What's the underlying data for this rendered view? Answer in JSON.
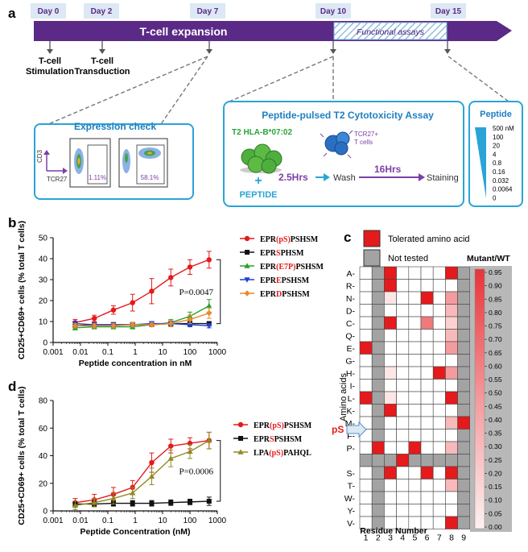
{
  "panel_a": {
    "label": "a",
    "days": [
      "Day 0",
      "Day 2",
      "Day 7",
      "Day 10",
      "Day 15"
    ],
    "bar_title": "T-cell expansion",
    "functional_assays": "Functional assays",
    "steps": [
      "T-cell\nStimulation",
      "T-cell\nTransduction"
    ],
    "expression_check": {
      "title": "Expression check",
      "y_axis": "CD3",
      "x_axis": "TCR27",
      "plot1_pct": "1.11%",
      "plot2_pct": "58.1%"
    },
    "cytotox": {
      "title": "Peptide-pulsed T2 Cytotoxicity Assay",
      "t2_label": "T2 HLA-B*07:02",
      "plus": "+",
      "peptide": "PEPTIDE",
      "tcr_label": "TCR27+\nT cells",
      "time1": "2.5Hrs",
      "wash": "Wash",
      "time2": "16Hrs",
      "staining": "Staining"
    },
    "peptide_box": {
      "title": "Peptide",
      "concs": [
        "500 nM",
        "100",
        "20",
        "4",
        "0.8",
        "0.16",
        "0.032",
        "0.0064",
        "0"
      ]
    }
  },
  "panel_b": {
    "label": "b",
    "chart_data": {
      "type": "line",
      "xlabel": "Peptide concentration in nM",
      "ylabel": "CD25+CD69+ cells (% total T cells)",
      "x": [
        0.0064,
        0.032,
        0.16,
        0.8,
        4,
        20,
        100,
        500
      ],
      "xticks": [
        "0.001",
        "0.01",
        "0.1",
        "1",
        "10",
        "100",
        "1000"
      ],
      "yticks": [
        "0",
        "10",
        "20",
        "30",
        "40",
        "50"
      ],
      "ylim": [
        0,
        50
      ],
      "xlim": [
        0.001,
        1000
      ],
      "series": [
        {
          "name": "EPR(pS)PSHSM",
          "pre": "EPR",
          "mid": "(pS)",
          "post": "PSHSM",
          "color": "#e41a1c",
          "marker": "circle",
          "values": [
            9.5,
            11.5,
            15.5,
            19,
            24.5,
            31,
            36,
            39.5
          ],
          "err": [
            1.5,
            1.5,
            2,
            4,
            6,
            4,
            3.5,
            4
          ]
        },
        {
          "name": "EPRSPHSM",
          "pre": "EPR",
          "mid": "S",
          "post": "PHSM",
          "color": "#111111",
          "marker": "square",
          "values": [
            8,
            8.5,
            8.5,
            8.5,
            8.5,
            9,
            9,
            9
          ],
          "err": [
            1,
            1,
            1,
            1,
            1,
            1,
            1,
            1
          ]
        },
        {
          "name": "EPR(E7P)PSHSM",
          "pre": "EPR",
          "mid": "(E7P)",
          "post": "PSHSM",
          "color": "#2ca02c",
          "marker": "triangle",
          "values": [
            7,
            7.5,
            7.5,
            7.5,
            8.5,
            9.5,
            12.5,
            17.5
          ],
          "err": [
            1,
            1,
            1,
            1,
            1,
            1.5,
            2,
            3
          ]
        },
        {
          "name": "EPREPSHSM",
          "pre": "EPR",
          "mid": "E",
          "post": "PSHSM",
          "color": "#1f3fd6",
          "marker": "tri-down",
          "values": [
            9,
            8.5,
            8.5,
            8.5,
            9,
            9,
            8.5,
            8
          ],
          "err": [
            1,
            1,
            1,
            1,
            1,
            1,
            1,
            1
          ]
        },
        {
          "name": "EPRDPSHSM",
          "pre": "EPR",
          "mid": "D",
          "post": "PSHSM",
          "color": "#e8892c",
          "marker": "diamond",
          "values": [
            8,
            8,
            8,
            8.5,
            8.5,
            9,
            11,
            14
          ],
          "err": [
            1,
            1,
            1,
            1,
            1,
            1.5,
            2,
            2.5
          ]
        }
      ],
      "annotation": "P=0.0047"
    }
  },
  "panel_c": {
    "label": "c",
    "legend_tolerated": "Tolerated amino acid",
    "legend_not_tested": "Not tested",
    "colorbar_title": "Mutant/WT",
    "colorbar_ticks": [
      "0.95",
      "0.90",
      "0.85",
      "0.80",
      "0.75",
      "0.70",
      "0.65",
      "0.60",
      "0.55",
      "0.50",
      "0.45",
      "0.40",
      "0.35",
      "0.30",
      "0.25",
      "0.20",
      "0.15",
      "0.10",
      "0.05",
      "0.00"
    ],
    "ylabel": "Amino acids",
    "xlabel": "Residue Number",
    "ps_label": "pS",
    "chart_data": {
      "type": "heatmap",
      "rows": [
        "A",
        "R",
        "N",
        "D",
        "C",
        "Q",
        "E",
        "G",
        "H",
        "I",
        "L",
        "K",
        "M",
        "F",
        "P",
        "pS",
        "S",
        "T",
        "W",
        "Y",
        "V"
      ],
      "cols": [
        "1",
        "2",
        "3",
        "4",
        "5",
        "6",
        "7",
        "8",
        "9"
      ],
      "values": [
        [
          "w",
          "g",
          "r",
          "w",
          "w",
          "w",
          "w",
          "r",
          "g"
        ],
        [
          "w",
          "g",
          "r",
          "w",
          "w",
          "w",
          "w",
          "w",
          "g"
        ],
        [
          "w",
          "g",
          "p1",
          "w",
          "w",
          "r",
          "w",
          "p4",
          "g"
        ],
        [
          "w",
          "g",
          "w",
          "w",
          "w",
          "w",
          "w",
          "p3",
          "g"
        ],
        [
          "w",
          "g",
          "r",
          "w",
          "w",
          "p5",
          "w",
          "p2",
          "g"
        ],
        [
          "w",
          "g",
          "w",
          "w",
          "w",
          "w",
          "w",
          "p3",
          "g"
        ],
        [
          "r",
          "g",
          "w",
          "w",
          "w",
          "w",
          "w",
          "p4",
          "g"
        ],
        [
          "w",
          "g",
          "w",
          "w",
          "w",
          "w",
          "w",
          "w",
          "g"
        ],
        [
          "w",
          "g",
          "p1",
          "w",
          "w",
          "w",
          "r",
          "p4",
          "g"
        ],
        [
          "w",
          "g",
          "w",
          "w",
          "w",
          "w",
          "w",
          "w",
          "g"
        ],
        [
          "r",
          "g",
          "p1",
          "w",
          "w",
          "w",
          "w",
          "r",
          "g"
        ],
        [
          "w",
          "g",
          "r",
          "w",
          "w",
          "w",
          "w",
          "w",
          "g"
        ],
        [
          "w",
          "g",
          "w",
          "w",
          "w",
          "w",
          "w",
          "p3",
          "r"
        ],
        [
          "w",
          "g",
          "w",
          "w",
          "w",
          "w",
          "w",
          "w",
          "g"
        ],
        [
          "w",
          "r",
          "w",
          "w",
          "r",
          "w",
          "w",
          "p3",
          "g"
        ],
        [
          "g",
          "g",
          "g",
          "r",
          "g",
          "g",
          "g",
          "g",
          "g"
        ],
        [
          "w",
          "g",
          "r",
          "w",
          "w",
          "r",
          "w",
          "r",
          "g"
        ],
        [
          "w",
          "g",
          "w",
          "w",
          "w",
          "w",
          "w",
          "p3",
          "g"
        ],
        [
          "w",
          "g",
          "w",
          "w",
          "w",
          "w",
          "w",
          "w",
          "g"
        ],
        [
          "w",
          "g",
          "w",
          "w",
          "w",
          "w",
          "w",
          "w",
          "g"
        ],
        [
          "w",
          "g",
          "w",
          "w",
          "w",
          "w",
          "w",
          "r",
          "g"
        ]
      ]
    }
  },
  "panel_d": {
    "label": "d",
    "chart_data": {
      "type": "line",
      "xlabel": "Peptide Concentration (nM)",
      "ylabel": "CD25+CD69+ cells (% total T cells)",
      "x": [
        0.0064,
        0.032,
        0.16,
        0.8,
        4,
        20,
        100,
        500
      ],
      "xticks": [
        "0.001",
        "0.01",
        "0.1",
        "1",
        "10",
        "100",
        "1000"
      ],
      "yticks": [
        "0",
        "20",
        "40",
        "60",
        "80"
      ],
      "ylim": [
        0,
        80
      ],
      "xlim": [
        0.001,
        1000
      ],
      "series": [
        {
          "name": "EPR(pS)PSHSM",
          "pre": "EPR",
          "mid": "(pS)",
          "post": "PSHSM",
          "color": "#e41a1c",
          "marker": "circle",
          "values": [
            6,
            8,
            12,
            17,
            35,
            47,
            49,
            51
          ],
          "err": [
            3,
            4,
            5,
            5,
            7,
            5,
            4,
            6
          ]
        },
        {
          "name": "EPRSPSHSM",
          "pre": "EPR",
          "mid": "S",
          "post": "PSHSM",
          "color": "#111111",
          "marker": "square",
          "values": [
            5,
            5,
            5.5,
            5.5,
            5.5,
            6,
            6.5,
            7
          ],
          "err": [
            2,
            2,
            2,
            2,
            2,
            2,
            2,
            3
          ]
        },
        {
          "name": "LPA(pS)PAHQL",
          "pre": "LPA",
          "mid": "(pS)",
          "post": "PAHQL",
          "color": "#8f8a24",
          "marker": "triangle",
          "values": [
            4,
            6,
            9,
            13,
            25,
            38,
            43,
            51
          ],
          "err": [
            3,
            3,
            4,
            4,
            6,
            6,
            5,
            6
          ]
        }
      ],
      "annotation": "P=0.0006"
    }
  }
}
